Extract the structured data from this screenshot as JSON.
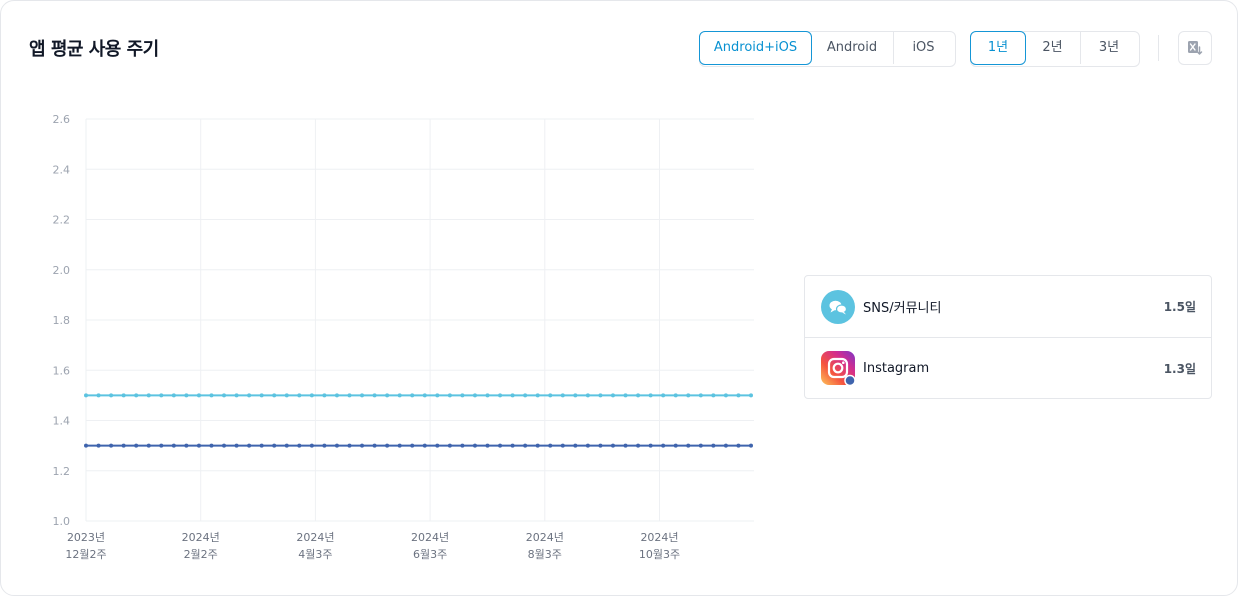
{
  "header": {
    "title": "앱 평균 사용 주기"
  },
  "platform_tabs": [
    {
      "label": "Android+iOS",
      "active": true
    },
    {
      "label": "Android",
      "active": false
    },
    {
      "label": "iOS",
      "active": false
    }
  ],
  "period_tabs": [
    {
      "label": "1년",
      "active": true
    },
    {
      "label": "2년",
      "active": false
    },
    {
      "label": "3년",
      "active": false
    }
  ],
  "toolbar": {
    "download_icon": "excel-download-icon"
  },
  "colors": {
    "sns": "#5cc3e0",
    "instagram": "#3f64ad",
    "accent": "#1596d6",
    "grid": "#eef0f3"
  },
  "legend": [
    {
      "name": "SNS/커뮤니티",
      "value": "1.5일",
      "icon": "chat-bubbles-icon"
    },
    {
      "name": "Instagram",
      "value": "1.3일",
      "icon": "instagram-icon"
    }
  ],
  "chart_data": {
    "type": "line",
    "ylim": [
      1.0,
      2.6
    ],
    "yticks": [
      "2.6",
      "2.4",
      "2.2",
      "2.0",
      "1.8",
      "1.6",
      "1.4",
      "1.2",
      "1.0"
    ],
    "x_tick_labels": [
      {
        "line1": "2023년",
        "line2": "12월2주"
      },
      {
        "line1": "2024년",
        "line2": "2월2주"
      },
      {
        "line1": "2024년",
        "line2": "4월3주"
      },
      {
        "line1": "2024년",
        "line2": "6월3주"
      },
      {
        "line1": "2024년",
        "line2": "8월3주"
      },
      {
        "line1": "2024년",
        "line2": "10월3주"
      }
    ],
    "point_count": 54,
    "series": [
      {
        "name": "SNS/커뮤니티",
        "value": 1.5
      },
      {
        "name": "Instagram",
        "value": 1.3
      }
    ],
    "grid": true,
    "legend_position": "right"
  }
}
